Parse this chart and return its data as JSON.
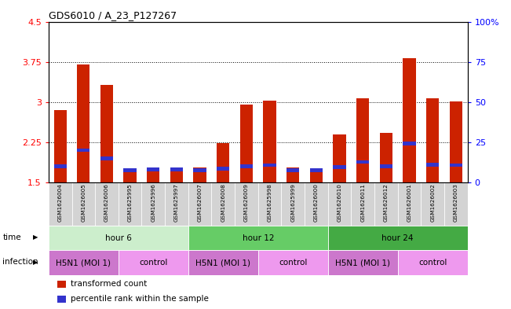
{
  "title": "GDS6010 / A_23_P127267",
  "samples": [
    "GSM1626004",
    "GSM1626005",
    "GSM1626006",
    "GSM1625995",
    "GSM1625996",
    "GSM1625997",
    "GSM1626007",
    "GSM1626008",
    "GSM1626009",
    "GSM1625998",
    "GSM1625999",
    "GSM1626000",
    "GSM1626010",
    "GSM1626011",
    "GSM1626012",
    "GSM1626001",
    "GSM1626002",
    "GSM1626003"
  ],
  "red_values": [
    2.85,
    3.7,
    3.32,
    1.75,
    1.76,
    1.76,
    1.77,
    2.23,
    2.95,
    3.03,
    1.77,
    1.72,
    2.4,
    3.07,
    2.42,
    3.82,
    3.07,
    3.01
  ],
  "blue_values": [
    1.8,
    2.1,
    1.95,
    1.72,
    1.74,
    1.74,
    1.73,
    1.75,
    1.8,
    1.82,
    1.73,
    1.72,
    1.78,
    1.88,
    1.8,
    2.23,
    1.83,
    1.82
  ],
  "ymin": 1.5,
  "ymax": 4.5,
  "yticks": [
    1.5,
    2.25,
    3.0,
    3.75,
    4.5
  ],
  "ytick_labels_left": [
    "1.5",
    "2.25",
    "3",
    "3.75",
    "4.5"
  ],
  "ytick_labels_right": [
    "0",
    "25",
    "50",
    "75",
    "100%"
  ],
  "bar_color": "#cc2200",
  "blue_color": "#3333cc",
  "bg_color": "#ffffff",
  "groups": [
    {
      "label": "hour 6",
      "start": 0,
      "end": 6,
      "color": "#cceecc"
    },
    {
      "label": "hour 12",
      "start": 6,
      "end": 12,
      "color": "#66cc66"
    },
    {
      "label": "hour 24",
      "start": 12,
      "end": 18,
      "color": "#44aa44"
    }
  ],
  "infections": [
    {
      "label": "H5N1 (MOI 1)",
      "start": 0,
      "end": 3,
      "color": "#cc77cc"
    },
    {
      "label": "control",
      "start": 3,
      "end": 6,
      "color": "#ee99ee"
    },
    {
      "label": "H5N1 (MOI 1)",
      "start": 6,
      "end": 9,
      "color": "#cc77cc"
    },
    {
      "label": "control",
      "start": 9,
      "end": 12,
      "color": "#ee99ee"
    },
    {
      "label": "H5N1 (MOI 1)",
      "start": 12,
      "end": 15,
      "color": "#cc77cc"
    },
    {
      "label": "control",
      "start": 15,
      "end": 18,
      "color": "#ee99ee"
    }
  ],
  "time_label": "time",
  "infection_label": "infection",
  "legend_items": [
    {
      "label": "transformed count",
      "color": "#cc2200"
    },
    {
      "label": "percentile rank within the sample",
      "color": "#3333cc"
    }
  ],
  "blue_bar_height": 0.07,
  "bar_width": 0.55
}
